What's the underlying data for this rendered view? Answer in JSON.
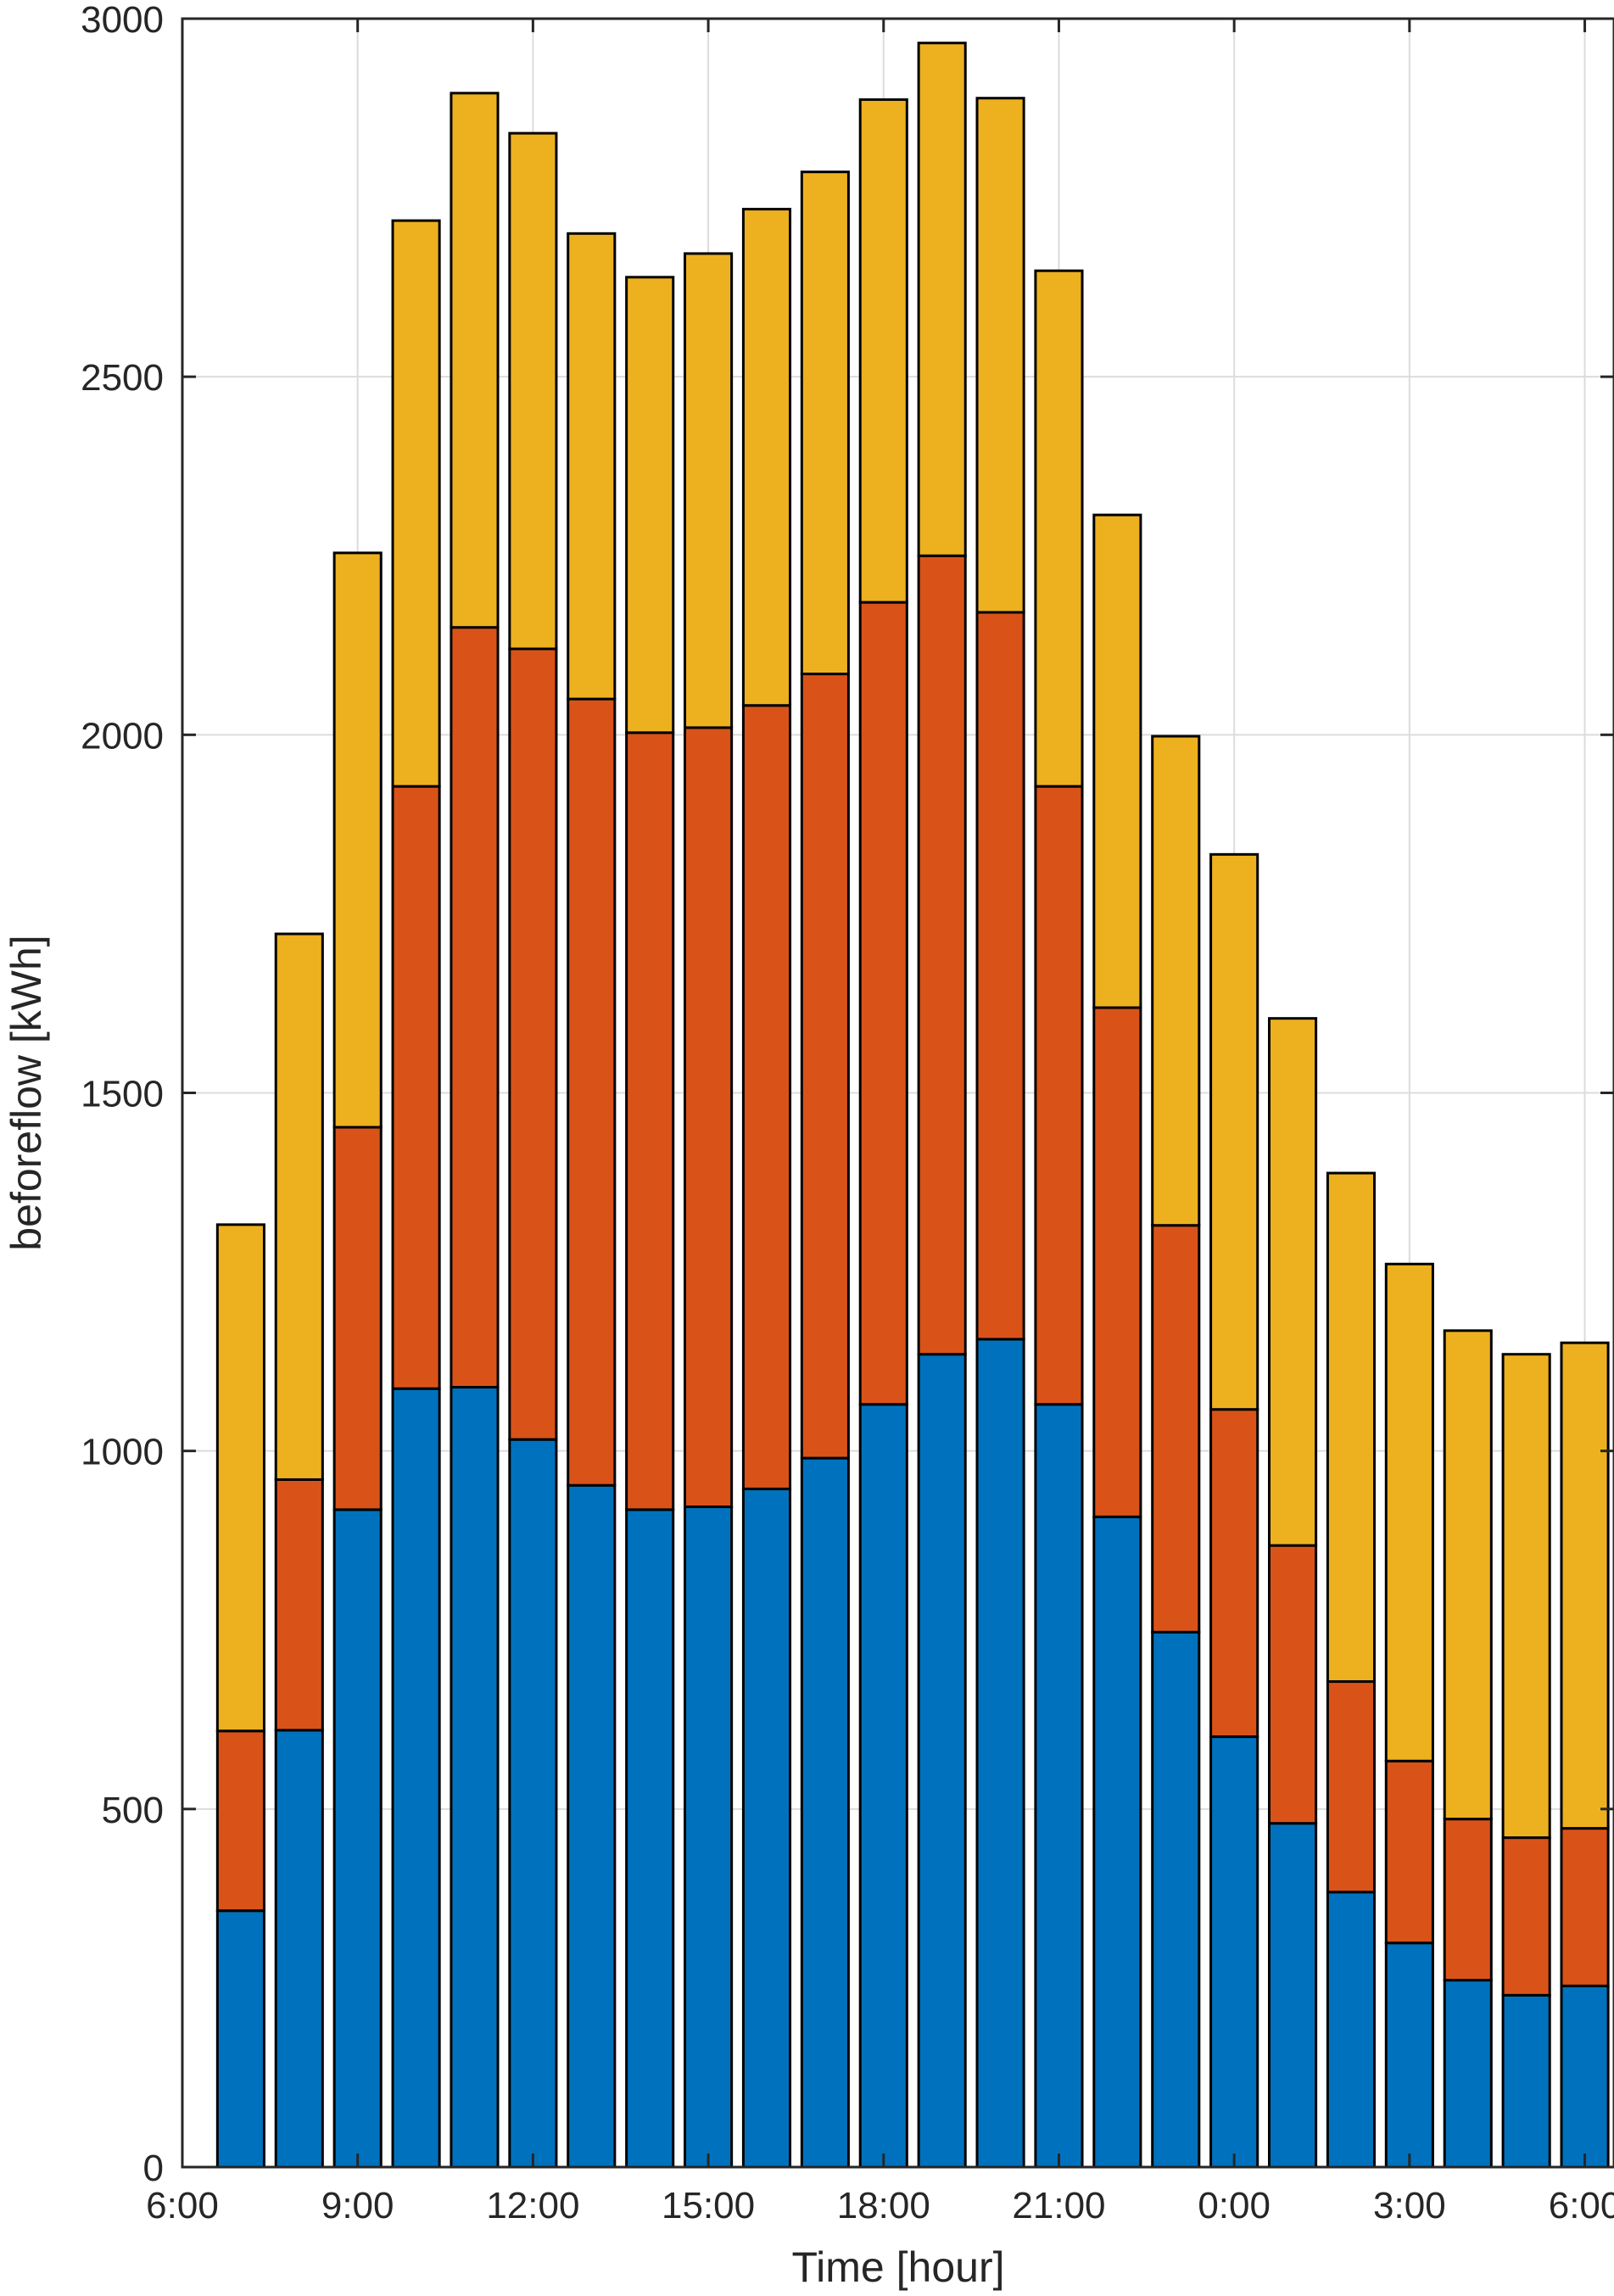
{
  "chart_data": {
    "type": "bar",
    "stacked": true,
    "title": "",
    "xlabel": "Time [hour]",
    "ylabel": "beforeflow [kWh]",
    "xlim": [
      6,
      30.5
    ],
    "ylim": [
      0,
      3000
    ],
    "grid": true,
    "xticks": [
      {
        "value": 6,
        "label": "6:00"
      },
      {
        "value": 9,
        "label": "9:00"
      },
      {
        "value": 12,
        "label": "12:00"
      },
      {
        "value": 15,
        "label": "15:00"
      },
      {
        "value": 18,
        "label": "18:00"
      },
      {
        "value": 21,
        "label": "21:00"
      },
      {
        "value": 24,
        "label": "0:00"
      },
      {
        "value": 27,
        "label": "3:00"
      },
      {
        "value": 30,
        "label": "6:00"
      }
    ],
    "yticks": [
      0,
      500,
      1000,
      1500,
      2000,
      2500,
      3000
    ],
    "x": [
      7,
      8,
      9,
      10,
      11,
      12,
      13,
      14,
      15,
      16,
      17,
      18,
      19,
      20,
      21,
      22,
      23,
      24,
      25,
      26,
      27,
      28,
      29,
      30
    ],
    "series": [
      {
        "color": "#0072BD",
        "values": [
          358,
          610,
          918,
          1087,
          1089,
          1016,
          952,
          918,
          922,
          947,
          990,
          1065,
          1135,
          1156,
          1065,
          908,
          747,
          601,
          480,
          384,
          313,
          261,
          240,
          253
        ]
      },
      {
        "color": "#D95319",
        "values": [
          251,
          350,
          534,
          841,
          1061,
          1104,
          1098,
          1085,
          1088,
          1094,
          1095,
          1120,
          1115,
          1015,
          863,
          711,
          568,
          457,
          388,
          294,
          254,
          225,
          220,
          220
        ]
      },
      {
        "color": "#EDB120",
        "values": [
          707,
          762,
          802,
          790,
          746,
          720,
          650,
          636,
          662,
          693,
          701,
          702,
          716,
          718,
          720,
          688,
          683,
          775,
          736,
          710,
          694,
          682,
          675,
          678
        ]
      }
    ]
  }
}
